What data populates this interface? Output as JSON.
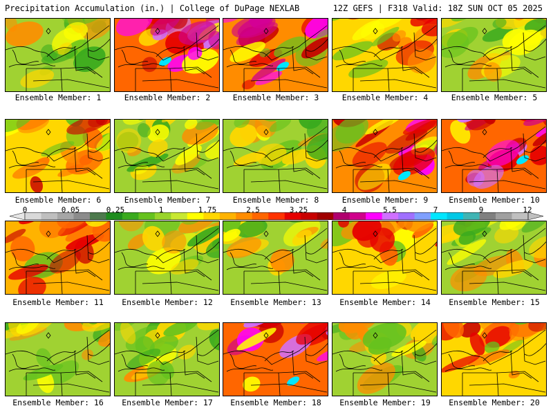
{
  "header": {
    "left": "Precipitation Accumulation (in.) | College of DuPage NEXLAB",
    "right": "12Z GEFS | F318 Valid: 18Z SUN OCT 05 2025"
  },
  "colorbar": {
    "tick_labels": [
      "0",
      "0.05",
      "0.25",
      "1",
      "1.75",
      "2.5",
      "3.25",
      "4",
      "5.5",
      "7",
      "9",
      "12"
    ],
    "colors": [
      "#d9d9d9",
      "#bfbfbf",
      "#a6a6a6",
      "#8c8c8c",
      "#4d7a4d",
      "#1e8c1e",
      "#3aaa1e",
      "#66c21e",
      "#99d42a",
      "#c8e832",
      "#ffff00",
      "#ffd700",
      "#ffb300",
      "#ff8c00",
      "#ff6600",
      "#ff3300",
      "#e60000",
      "#c80000",
      "#a00000",
      "#b0006e",
      "#d0008c",
      "#ff00ff",
      "#d070ff",
      "#a070ff",
      "#7fa0ff",
      "#00e6ff",
      "#00c8e6",
      "#40b4b4",
      "#808080",
      "#a0a0a0",
      "#c0c0c0"
    ]
  },
  "members": [
    {
      "label": "Ensemble Member: 1",
      "intensity": 1
    },
    {
      "label": "Ensemble Member: 2",
      "intensity": 5
    },
    {
      "label": "Ensemble Member: 3",
      "intensity": 4
    },
    {
      "label": "Ensemble Member: 4",
      "intensity": 2
    },
    {
      "label": "Ensemble Member: 5",
      "intensity": 1
    },
    {
      "label": "Ensemble Member: 6",
      "intensity": 2
    },
    {
      "label": "Ensemble Member: 7",
      "intensity": 1
    },
    {
      "label": "Ensemble Member: 8",
      "intensity": 1
    },
    {
      "label": "Ensemble Member: 9",
      "intensity": 4
    },
    {
      "label": "Ensemble Member: 10",
      "intensity": 5
    },
    {
      "label": "Ensemble Member: 11",
      "intensity": 3
    },
    {
      "label": "Ensemble Member: 12",
      "intensity": 1
    },
    {
      "label": "Ensemble Member: 13",
      "intensity": 1
    },
    {
      "label": "Ensemble Member: 14",
      "intensity": 2
    },
    {
      "label": "Ensemble Member: 15",
      "intensity": 1
    },
    {
      "label": "Ensemble Member: 16",
      "intensity": 1
    },
    {
      "label": "Ensemble Member: 17",
      "intensity": 1
    },
    {
      "label": "Ensemble Member: 18",
      "intensity": 5
    },
    {
      "label": "Ensemble Member: 19",
      "intensity": 1
    },
    {
      "label": "Ensemble Member: 20",
      "intensity": 2
    }
  ]
}
